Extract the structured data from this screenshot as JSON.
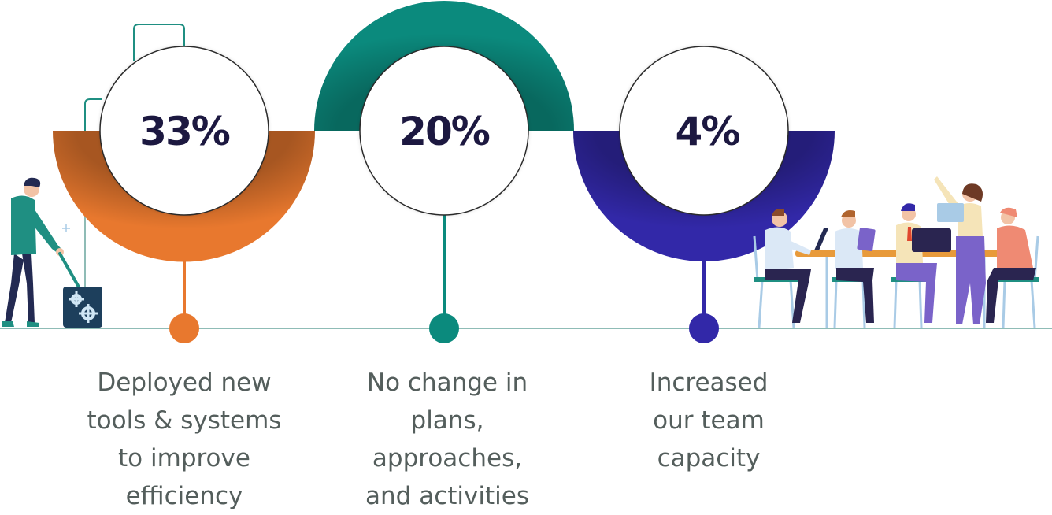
{
  "stats": [
    {
      "value_label": "33%",
      "value": 33,
      "color": "#e8782e",
      "caption_lines": [
        "Deployed new",
        "tools & systems",
        "to improve",
        "efficiency"
      ]
    },
    {
      "value_label": "20%",
      "value": 20,
      "color": "#0b8a7d",
      "caption_lines": [
        "No change in",
        "plans,",
        "approaches,",
        "and activities"
      ]
    },
    {
      "value_label": "4%",
      "value": 4,
      "color": "#3228a8",
      "caption_lines": [
        "Increased",
        "our team",
        "capacity"
      ]
    }
  ],
  "colors": {
    "baseline": "#8fbcb6",
    "figure_teal": "#1f8f82",
    "figure_navy": "#232a52",
    "gear_box": "#1d3f5c",
    "table_top": "#e89a3a",
    "skin": "#f2c3a6",
    "purple": "#7a63c9",
    "coral": "#ef8a73"
  },
  "illustrations": [
    "worker-with-gears-icon",
    "team-meeting-illustration"
  ]
}
